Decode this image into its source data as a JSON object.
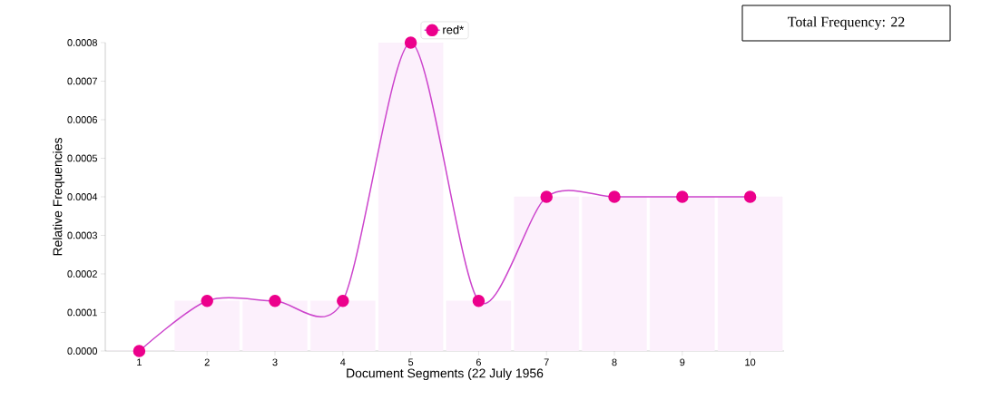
{
  "chart_data": {
    "type": "bar",
    "categories": [
      "1",
      "2",
      "3",
      "4",
      "5",
      "6",
      "7",
      "8",
      "9",
      "10"
    ],
    "xlabel": "Document Segments (22 July 1956",
    "ylabel": "Relative Frequencies",
    "ylim": [
      0,
      0.0008
    ],
    "yticks": [
      {
        "value": 0,
        "label": "0.0000"
      },
      {
        "value": 0.0001,
        "label": "0.0001"
      },
      {
        "value": 0.0002,
        "label": "0.0002"
      },
      {
        "value": 0.0003,
        "label": "0.0003"
      },
      {
        "value": 0.0004,
        "label": "0.0004"
      },
      {
        "value": 0.0005,
        "label": "0.0005"
      },
      {
        "value": 0.0006,
        "label": "0.0006"
      },
      {
        "value": 0.0007,
        "label": "0.0007"
      },
      {
        "value": 0.0008,
        "label": "0.0008"
      }
    ],
    "series": [
      {
        "color": "#fcf0fc",
        "values": [
          0,
          0.00013,
          0.00013,
          0.00013,
          0.0008,
          0.00013,
          0.0004,
          0.0004,
          0.0004,
          0.0004
        ]
      },
      {
        "type": "line",
        "name": "red*",
        "color": "#cc44cc",
        "values": [
          0,
          0.00013,
          0.00013,
          0.00013,
          0.0008,
          0.00013,
          0.0004,
          0.0004,
          0.0004,
          0.0004
        ]
      }
    ],
    "marker": "circle",
    "legend": "top",
    "annotations": [
      "Total Frequency: 22"
    ]
  }
}
